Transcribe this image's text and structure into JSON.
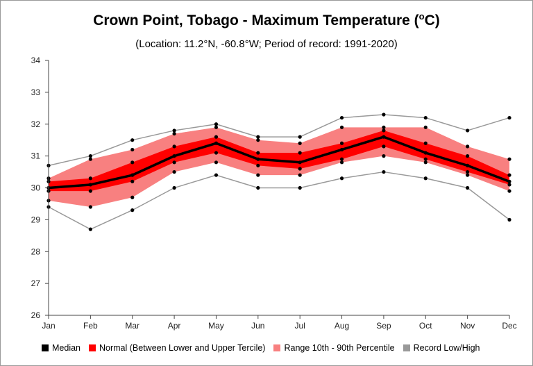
{
  "chart_data": {
    "type": "area",
    "title": "Crown Point, Tobago - Maximum Temperature (",
    "title_superscript": "o",
    "title_suffix": "C)",
    "subtitle": "(Location: 11.2°N, -60.8°W; Period of record: 1991-2020)",
    "categories": [
      "Jan",
      "Feb",
      "Mar",
      "Apr",
      "May",
      "Jun",
      "Jul",
      "Aug",
      "Sep",
      "Oct",
      "Nov",
      "Dec"
    ],
    "ylim": [
      26,
      34
    ],
    "yticks": [
      "26",
      "27",
      "28",
      "29",
      "30",
      "31",
      "32",
      "33",
      "34"
    ],
    "xlabel": "",
    "ylabel": "",
    "grid": false,
    "legend_placement": "bottom",
    "series": [
      {
        "name": "Median",
        "color": "#000000",
        "values": [
          30.0,
          30.1,
          30.4,
          31.0,
          31.4,
          30.9,
          30.8,
          31.2,
          31.6,
          31.1,
          30.7,
          30.2
        ]
      },
      {
        "name": "Normal (Between Lower and Upper Tercile)",
        "color": "#ff0000",
        "lower": [
          29.9,
          29.9,
          30.2,
          30.8,
          31.1,
          30.7,
          30.6,
          30.9,
          31.3,
          30.9,
          30.5,
          30.1
        ],
        "upper": [
          30.2,
          30.3,
          30.8,
          31.3,
          31.6,
          31.1,
          31.1,
          31.4,
          31.8,
          31.4,
          31.0,
          30.4
        ]
      },
      {
        "name": "Range 10th - 90th Percentile",
        "color": "#f88080",
        "lower": [
          29.6,
          29.4,
          29.7,
          30.5,
          30.8,
          30.4,
          30.4,
          30.8,
          31.0,
          30.8,
          30.4,
          29.9
        ],
        "upper": [
          30.3,
          30.9,
          31.2,
          31.7,
          31.9,
          31.5,
          31.4,
          31.9,
          31.9,
          31.9,
          31.3,
          30.9
        ]
      },
      {
        "name": "Record Low/High",
        "color": "#999999",
        "lower": [
          29.4,
          28.7,
          29.3,
          30.0,
          30.4,
          30.0,
          30.0,
          30.3,
          30.5,
          30.3,
          30.0,
          29.0
        ],
        "upper": [
          30.7,
          31.0,
          31.5,
          31.8,
          32.0,
          31.6,
          31.6,
          32.2,
          32.3,
          32.2,
          31.8,
          32.2
        ]
      }
    ]
  }
}
